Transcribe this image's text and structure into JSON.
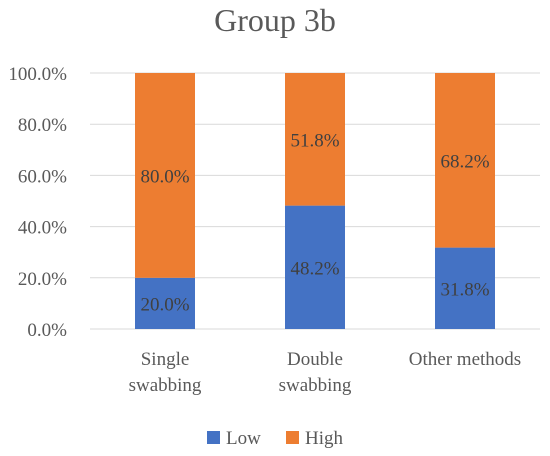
{
  "chart_data": {
    "type": "bar",
    "stacked": true,
    "percent": true,
    "title": "Group 3b",
    "categories": [
      [
        "Single",
        "swabbing"
      ],
      [
        "Double",
        "swabbing"
      ],
      [
        "Other methods"
      ]
    ],
    "series": [
      {
        "name": "Low",
        "color": "#4472C4",
        "values": [
          20.0,
          48.2,
          31.8
        ],
        "labels": [
          "20.0%",
          "48.2%",
          "31.8%"
        ]
      },
      {
        "name": "High",
        "color": "#ED7D31",
        "values": [
          80.0,
          51.8,
          68.2
        ],
        "labels": [
          "80.0%",
          "51.8%",
          "68.2%"
        ]
      }
    ],
    "ylim": [
      0,
      100
    ],
    "yticks": [
      "0.0%",
      "20.0%",
      "40.0%",
      "60.0%",
      "80.0%",
      "100.0%"
    ],
    "grid": true,
    "legend": "bottom"
  }
}
